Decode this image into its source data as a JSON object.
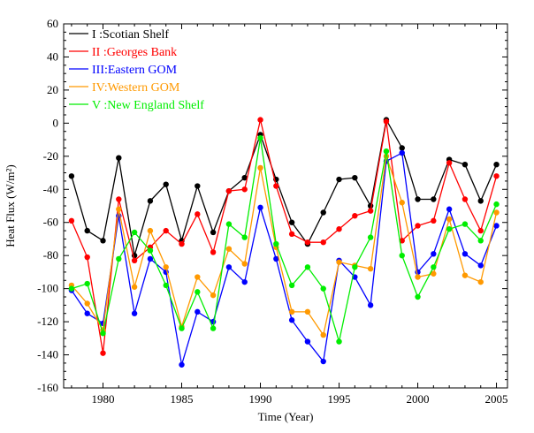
{
  "chart_data": {
    "type": "line",
    "title": "",
    "xlabel": "Time (Year)",
    "ylabel": "Heat Flux (W/m²)",
    "xlim": [
      1977.5,
      2005.7
    ],
    "ylim": [
      -160,
      60
    ],
    "x_ticks": [
      1980,
      1985,
      1990,
      1995,
      2000,
      2005
    ],
    "y_ticks": [
      -160,
      -140,
      -120,
      -100,
      -80,
      -60,
      -40,
      -20,
      0,
      20,
      40,
      60
    ],
    "grid": false,
    "legend_position": "top-left",
    "x": [
      1978,
      1979,
      1980,
      1981,
      1982,
      1983,
      1984,
      1985,
      1986,
      1987,
      1988,
      1989,
      1990,
      1991,
      1992,
      1993,
      1994,
      1995,
      1996,
      1997,
      1998,
      1999,
      2000,
      2001,
      2002,
      2003,
      2004,
      2005
    ],
    "series": [
      {
        "name": "I  :Scotian Shelf",
        "color": "#000000",
        "values": [
          -32,
          -65,
          -71,
          -21,
          -80,
          -47,
          -37,
          -71,
          -38,
          -66,
          -41,
          -33,
          -7,
          -34,
          -60,
          -73,
          -54,
          -34,
          -33,
          -50,
          2,
          -15,
          -46,
          -46,
          -22,
          -25,
          -47,
          -25
        ]
      },
      {
        "name": "II :Georges Bank",
        "color": "#ff0000",
        "values": [
          -59,
          -81,
          -139,
          -46,
          -83,
          -75,
          -65,
          -73,
          -55,
          -78,
          -41,
          -40,
          2,
          -38,
          -67,
          -72,
          -72,
          -64,
          -56,
          -53,
          1,
          -71,
          -62,
          -59,
          -24,
          -46,
          -65,
          -32
        ]
      },
      {
        "name": "III:Eastern GOM",
        "color": "#0000ff",
        "values": [
          -101,
          -115,
          -121,
          -56,
          -115,
          -82,
          -90,
          -146,
          -114,
          -120,
          -87,
          -96,
          -51,
          -82,
          -119,
          -132,
          -144,
          -83,
          -93,
          -110,
          -23,
          -18,
          -90,
          -79,
          -52,
          -79,
          -86,
          -62
        ]
      },
      {
        "name": "IV:Western GOM",
        "color": "#ff9900",
        "values": [
          -98,
          -109,
          -125,
          -52,
          -99,
          -65,
          -87,
          -123,
          -93,
          -104,
          -76,
          -85,
          -27,
          -75,
          -114,
          -114,
          -128,
          -84,
          -86,
          -88,
          -20,
          -48,
          -93,
          -91,
          -58,
          -92,
          -96,
          -54
        ]
      },
      {
        "name": "V :New England Shelf",
        "color": "#00ee00",
        "values": [
          -100,
          -97,
          -127,
          -82,
          -66,
          -77,
          -98,
          -124,
          -102,
          -124,
          -61,
          -69,
          -9,
          -73,
          -98,
          -87,
          -100,
          -132,
          -87,
          -69,
          -17,
          -80,
          -105,
          -87,
          -64,
          -61,
          -71,
          -49
        ]
      }
    ]
  }
}
